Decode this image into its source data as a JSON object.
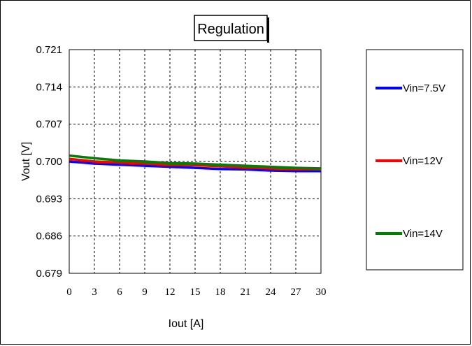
{
  "chart_data": {
    "type": "line",
    "title": "Regulation",
    "xlabel": "Iout [A]",
    "ylabel": "Vout [V]",
    "xlim": [
      0,
      30
    ],
    "ylim": [
      0.679,
      0.721
    ],
    "x_ticks": [
      "0",
      "3",
      "6",
      "9",
      "12",
      "15",
      "18",
      "21",
      "24",
      "27",
      "30"
    ],
    "y_ticks": [
      "0.721",
      "0.714",
      "0.707",
      "0.700",
      "0.693",
      "0.686",
      "0.679"
    ],
    "grid": true,
    "legend_position": "right",
    "series": [
      {
        "name": "Vin=7.5V",
        "color": "#0000ff",
        "x": [
          0,
          3,
          6,
          9,
          12,
          15,
          18,
          21,
          24,
          27,
          30
        ],
        "y": [
          0.7,
          0.6996,
          0.6994,
          0.6992,
          0.699,
          0.6988,
          0.6986,
          0.6985,
          0.6983,
          0.6982,
          0.6982
        ]
      },
      {
        "name": "Vin=12V",
        "color": "#ff0000",
        "x": [
          0,
          3,
          6,
          9,
          12,
          15,
          18,
          21,
          24,
          27,
          30
        ],
        "y": [
          0.7005,
          0.7,
          0.6998,
          0.6996,
          0.6994,
          0.6993,
          0.6991,
          0.6989,
          0.6987,
          0.6986,
          0.6985
        ]
      },
      {
        "name": "Vin=14V",
        "color": "#008000",
        "x": [
          0,
          3,
          6,
          9,
          12,
          15,
          18,
          21,
          24,
          27,
          30
        ],
        "y": [
          0.7011,
          0.7006,
          0.7002,
          0.7,
          0.6997,
          0.6996,
          0.6994,
          0.6992,
          0.699,
          0.6988,
          0.6987
        ]
      }
    ]
  }
}
